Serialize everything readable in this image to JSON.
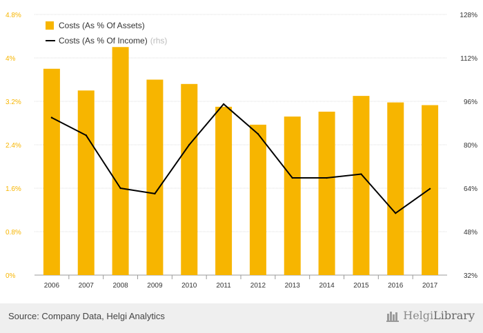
{
  "chart_data": {
    "type": "bar",
    "categories": [
      "2006",
      "2007",
      "2008",
      "2009",
      "2010",
      "2011",
      "2012",
      "2013",
      "2014",
      "2015",
      "2016",
      "2017"
    ],
    "series": [
      {
        "name": "Costs (As % Of Assets)",
        "type": "bar",
        "axis": "left",
        "color": "#f7b500",
        "values": [
          3.8,
          3.4,
          4.2,
          3.6,
          3.52,
          3.1,
          2.77,
          2.92,
          3.01,
          3.3,
          3.18,
          3.13
        ]
      },
      {
        "name": "Costs (As % Of Income)",
        "name_suffix": "(rhs)",
        "type": "line",
        "axis": "right",
        "color": "#000000",
        "values": [
          90,
          83.5,
          64,
          62,
          80,
          95,
          84,
          67.8,
          67.8,
          69.2,
          54.8,
          63.8
        ]
      }
    ],
    "y_left": {
      "ylim": [
        0,
        4.8
      ],
      "ticks": [
        "0%",
        "0.8%",
        "1.6%",
        "2.4%",
        "3.2%",
        "4%",
        "4.8%"
      ],
      "tick_color": "#f7b500"
    },
    "y_right": {
      "ylim": [
        32,
        128
      ],
      "ticks": [
        "32%",
        "48%",
        "64%",
        "80%",
        "96%",
        "112%",
        "128%"
      ],
      "tick_color": "#333333"
    },
    "grid": true,
    "legend_position": "top-left"
  },
  "footer": {
    "source": "Source: Company Data, Helgi Analytics",
    "brand_prefix": "Helgi",
    "brand_suffix": "Library",
    "brand_icon": "library-logo-icon"
  }
}
